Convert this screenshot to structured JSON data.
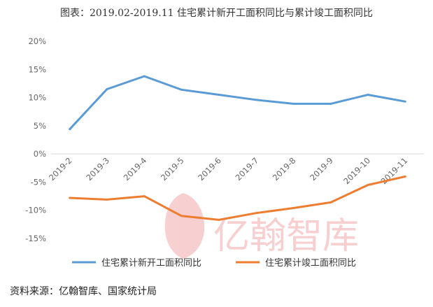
{
  "chart_data": {
    "type": "line",
    "title": "图表：2019.02-2019.11 住宅累计新开工面积同比与累计竣工面积同比",
    "categories": [
      "2019-2",
      "2019-3",
      "2019-4",
      "2019-5",
      "2019-6",
      "2019-7",
      "2019-8",
      "2019-9",
      "2019-10",
      "2019-11"
    ],
    "series": [
      {
        "name": "住宅累计新开工面积同比",
        "color": "#5b9bd5",
        "values": [
          4.4,
          11.5,
          13.8,
          11.4,
          10.5,
          9.6,
          8.9,
          8.9,
          10.5,
          9.3
        ]
      },
      {
        "name": "住宅累计竣工面积同比",
        "color": "#ed7d31",
        "values": [
          -7.8,
          -8.1,
          -7.5,
          -11.0,
          -11.7,
          -10.5,
          -9.6,
          -8.6,
          -5.5,
          -4.0
        ]
      }
    ],
    "ylim": [
      -15,
      20
    ],
    "yticks": [
      20,
      15,
      10,
      5,
      0,
      -5,
      -10,
      -15
    ],
    "ytick_suffix": "%",
    "legend_position": "bottom",
    "grid": false
  },
  "watermark_text": "亿翰智库",
  "source_note": "资料来源：亿翰智库、国家统计局"
}
